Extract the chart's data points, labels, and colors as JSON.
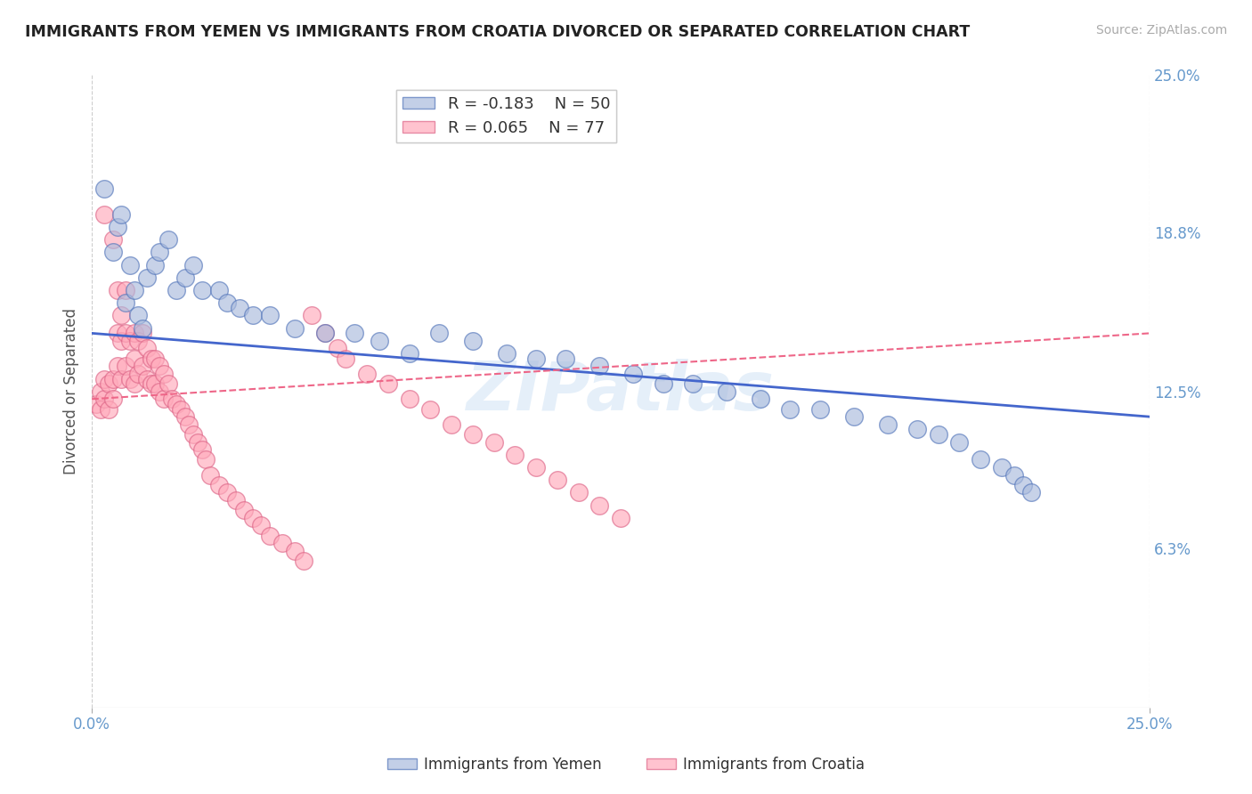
{
  "title": "IMMIGRANTS FROM YEMEN VS IMMIGRANTS FROM CROATIA DIVORCED OR SEPARATED CORRELATION CHART",
  "source": "Source: ZipAtlas.com",
  "ylabel": "Divorced or Separated",
  "xlim": [
    0.0,
    0.25
  ],
  "ylim": [
    0.0,
    0.25
  ],
  "ytick_labels_right": [
    "25.0%",
    "18.8%",
    "12.5%",
    "6.3%"
  ],
  "ytick_positions_right": [
    0.25,
    0.188,
    0.125,
    0.063
  ],
  "grid_color": "#cccccc",
  "background_color": "#ffffff",
  "watermark": "ZIPatlas",
  "legend_r1": "R = -0.183",
  "legend_n1": "N = 50",
  "legend_r2": "R = 0.065",
  "legend_n2": "N = 77",
  "blue_color": "#aabbdd",
  "blue_edge_color": "#5577bb",
  "pink_color": "#ffaabb",
  "pink_edge_color": "#dd6688",
  "trendline_blue_color": "#4466cc",
  "trendline_pink_color": "#ee6688",
  "label1": "Immigrants from Yemen",
  "label2": "Immigrants from Croatia",
  "blue_scatter_x": [
    0.003,
    0.005,
    0.006,
    0.007,
    0.008,
    0.009,
    0.01,
    0.011,
    0.012,
    0.013,
    0.015,
    0.016,
    0.018,
    0.02,
    0.022,
    0.024,
    0.026,
    0.03,
    0.032,
    0.035,
    0.038,
    0.042,
    0.048,
    0.055,
    0.062,
    0.068,
    0.075,
    0.082,
    0.09,
    0.098,
    0.105,
    0.112,
    0.12,
    0.128,
    0.135,
    0.142,
    0.15,
    0.158,
    0.165,
    0.172,
    0.18,
    0.188,
    0.195,
    0.2,
    0.205,
    0.21,
    0.215,
    0.218,
    0.22,
    0.222
  ],
  "blue_scatter_y": [
    0.205,
    0.18,
    0.19,
    0.195,
    0.16,
    0.175,
    0.165,
    0.155,
    0.15,
    0.17,
    0.175,
    0.18,
    0.185,
    0.165,
    0.17,
    0.175,
    0.165,
    0.165,
    0.16,
    0.158,
    0.155,
    0.155,
    0.15,
    0.148,
    0.148,
    0.145,
    0.14,
    0.148,
    0.145,
    0.14,
    0.138,
    0.138,
    0.135,
    0.132,
    0.128,
    0.128,
    0.125,
    0.122,
    0.118,
    0.118,
    0.115,
    0.112,
    0.11,
    0.108,
    0.105,
    0.098,
    0.095,
    0.092,
    0.088,
    0.085
  ],
  "pink_scatter_x": [
    0.001,
    0.002,
    0.002,
    0.003,
    0.003,
    0.003,
    0.004,
    0.004,
    0.005,
    0.005,
    0.005,
    0.006,
    0.006,
    0.006,
    0.007,
    0.007,
    0.007,
    0.008,
    0.008,
    0.008,
    0.009,
    0.009,
    0.01,
    0.01,
    0.01,
    0.011,
    0.011,
    0.012,
    0.012,
    0.013,
    0.013,
    0.014,
    0.014,
    0.015,
    0.015,
    0.016,
    0.016,
    0.017,
    0.017,
    0.018,
    0.019,
    0.02,
    0.021,
    0.022,
    0.023,
    0.024,
    0.025,
    0.026,
    0.027,
    0.028,
    0.03,
    0.032,
    0.034,
    0.036,
    0.038,
    0.04,
    0.042,
    0.045,
    0.048,
    0.05,
    0.052,
    0.055,
    0.058,
    0.06,
    0.065,
    0.07,
    0.075,
    0.08,
    0.085,
    0.09,
    0.095,
    0.1,
    0.105,
    0.11,
    0.115,
    0.12,
    0.125
  ],
  "pink_scatter_y": [
    0.12,
    0.125,
    0.118,
    0.195,
    0.13,
    0.122,
    0.128,
    0.118,
    0.185,
    0.13,
    0.122,
    0.165,
    0.148,
    0.135,
    0.155,
    0.145,
    0.13,
    0.165,
    0.148,
    0.135,
    0.145,
    0.13,
    0.148,
    0.138,
    0.128,
    0.145,
    0.132,
    0.148,
    0.135,
    0.142,
    0.13,
    0.138,
    0.128,
    0.138,
    0.128,
    0.135,
    0.125,
    0.132,
    0.122,
    0.128,
    0.122,
    0.12,
    0.118,
    0.115,
    0.112,
    0.108,
    0.105,
    0.102,
    0.098,
    0.092,
    0.088,
    0.085,
    0.082,
    0.078,
    0.075,
    0.072,
    0.068,
    0.065,
    0.062,
    0.058,
    0.155,
    0.148,
    0.142,
    0.138,
    0.132,
    0.128,
    0.122,
    0.118,
    0.112,
    0.108,
    0.105,
    0.1,
    0.095,
    0.09,
    0.085,
    0.08,
    0.075
  ],
  "blue_trend_x": [
    0.0,
    0.25
  ],
  "blue_trend_y": [
    0.148,
    0.115
  ],
  "pink_trend_x": [
    0.0,
    0.25
  ],
  "pink_trend_y": [
    0.122,
    0.148
  ]
}
